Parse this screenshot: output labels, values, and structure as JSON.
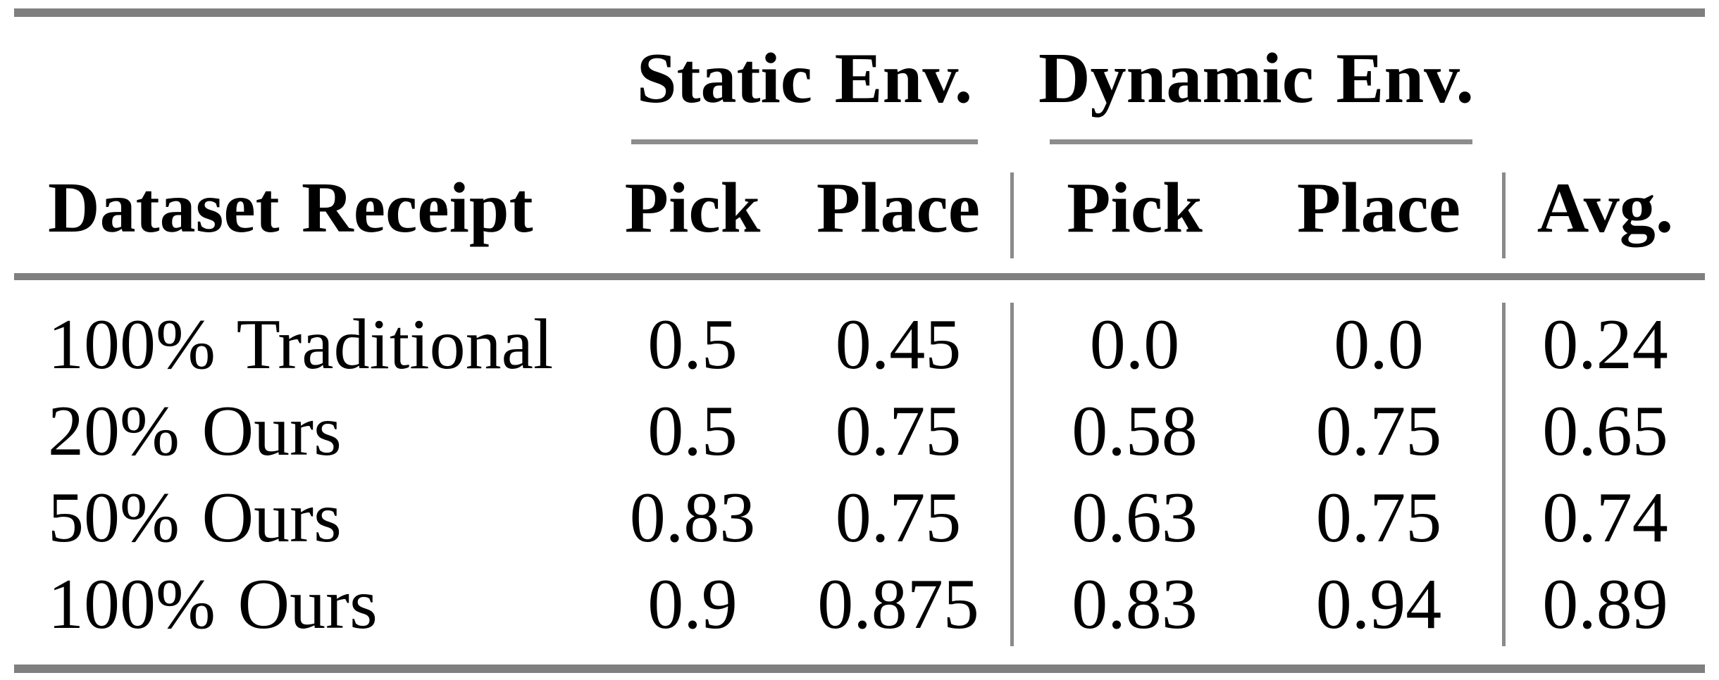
{
  "table": {
    "col_groups": [
      {
        "label": "Static Env."
      },
      {
        "label": "Dynamic Env."
      }
    ],
    "headers": {
      "dataset": "Dataset Receipt",
      "static_pick": "Pick",
      "static_place": "Place",
      "dynamic_pick": "Pick",
      "dynamic_place": "Place",
      "avg": "Avg."
    },
    "rows": [
      {
        "label": "100% Traditional",
        "static_pick": "0.5",
        "static_place": "0.45",
        "dynamic_pick": "0.0",
        "dynamic_place": "0.0",
        "avg": "0.24"
      },
      {
        "label": "20% Ours",
        "static_pick": "0.5",
        "static_place": "0.75",
        "dynamic_pick": "0.58",
        "dynamic_place": "0.75",
        "avg": "0.65"
      },
      {
        "label": "50% Ours",
        "static_pick": "0.83",
        "static_place": "0.75",
        "dynamic_pick": "0.63",
        "dynamic_place": "0.75",
        "avg": "0.74"
      },
      {
        "label": "100% Ours",
        "static_pick": "0.9",
        "static_place": "0.875",
        "dynamic_pick": "0.83",
        "dynamic_place": "0.94",
        "avg": "0.89"
      }
    ]
  },
  "colors": {
    "heavy_rule": "#7f7f7f",
    "light_rule": "#8c8c8c",
    "text": "#000000",
    "background": "#ffffff"
  }
}
